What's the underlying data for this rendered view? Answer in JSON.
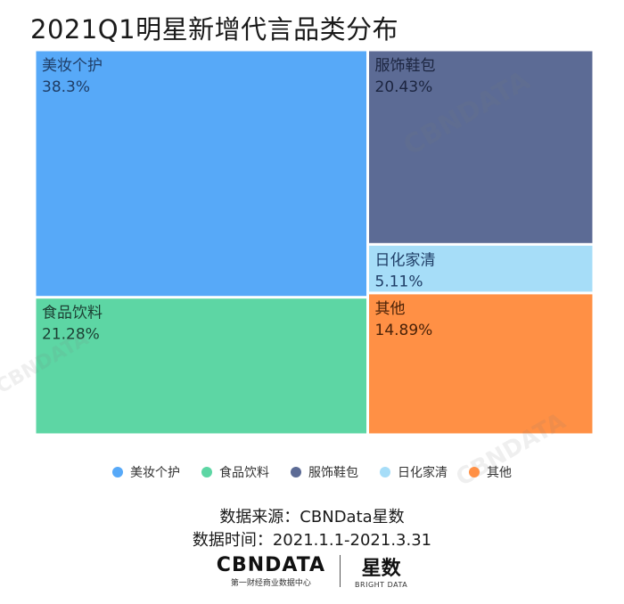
{
  "title": "2021Q1明星新增代言品类分布",
  "chart_data": {
    "type": "treemap",
    "unit": "%",
    "items": [
      {
        "name": "美妆个护",
        "value": 38.3,
        "label": "38.3%",
        "color": "#57A9F8",
        "text_color": "#1f3d66"
      },
      {
        "name": "服饰鞋包",
        "value": 20.43,
        "label": "20.43%",
        "color": "#5C6B95",
        "text_color": "#1c2540"
      },
      {
        "name": "日化家清",
        "value": 5.11,
        "label": "5.11%",
        "color": "#A6DDF8",
        "text_color": "#1f3d66"
      },
      {
        "name": "食品饮料",
        "value": 21.28,
        "label": "21.28%",
        "color": "#5DD6A4",
        "text_color": "#1c3f33"
      },
      {
        "name": "其他",
        "value": 14.89,
        "label": "14.89%",
        "color": "#FF9045",
        "text_color": "#4a2208"
      }
    ],
    "legend_position": "bottom"
  },
  "legend": [
    {
      "label": "美妆个护",
      "color": "#57A9F8"
    },
    {
      "label": "食品饮料",
      "color": "#5DD6A4"
    },
    {
      "label": "服饰鞋包",
      "color": "#5C6B95"
    },
    {
      "label": "日化家清",
      "color": "#A6DDF8"
    },
    {
      "label": "其他",
      "color": "#FF9045"
    }
  ],
  "source": {
    "line1": "数据来源：CBNData星数",
    "line2": "数据时间：2021.1.1-2021.3.31"
  },
  "brand": {
    "logo": "CBΝDATA",
    "logo_sub": "第一财经商业数据中心",
    "star": "星数",
    "star_sub": "BRIGHT DATA"
  },
  "watermarks": [
    {
      "text": "CBΝDATA",
      "sub": "第一财经商业数据中心"
    }
  ]
}
